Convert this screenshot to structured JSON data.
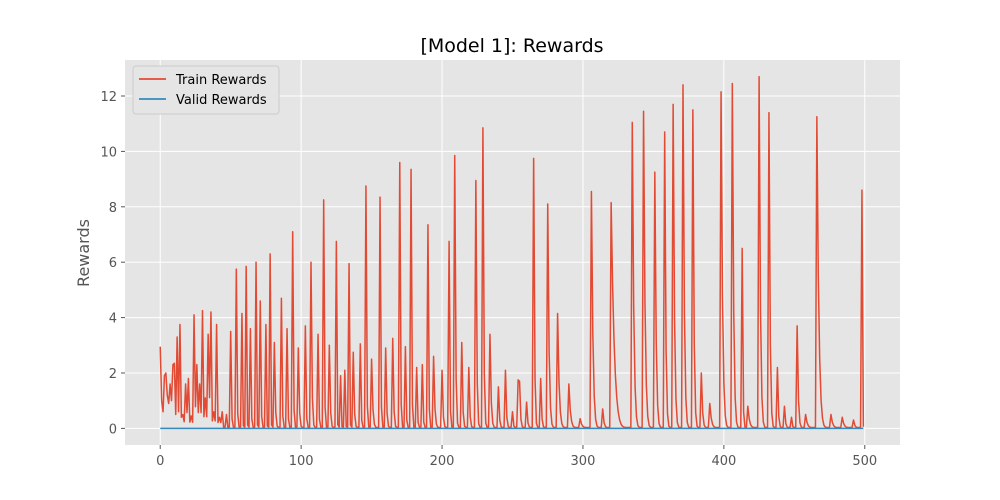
{
  "chart_data": {
    "type": "line",
    "title": "[Model 1]: Rewards",
    "xlabel": "",
    "ylabel": "Rewards",
    "xlim": [
      -25,
      525
    ],
    "ylim": [
      -0.6,
      13.3
    ],
    "xticks": [
      0,
      100,
      200,
      300,
      400,
      500
    ],
    "yticks": [
      0,
      2,
      4,
      6,
      8,
      10,
      12
    ],
    "grid": true,
    "legend_position": "top-left",
    "background": "#e5e5e5",
    "series": [
      {
        "name": "Train Rewards",
        "color": "#e24a33",
        "baseline": 0.3,
        "x_start": 0,
        "x_end": 499,
        "start_points": [
          [
            0,
            2.95
          ],
          [
            1,
            1.0
          ],
          [
            2,
            0.6
          ],
          [
            3,
            1.9
          ],
          [
            4,
            2.0
          ],
          [
            5,
            1.2
          ],
          [
            6,
            0.9
          ],
          [
            7,
            1.6
          ],
          [
            8,
            1.0
          ],
          [
            9,
            2.3
          ],
          [
            10,
            2.35
          ],
          [
            11,
            0.5
          ],
          [
            12,
            3.3
          ],
          [
            13,
            0.6
          ],
          [
            14,
            3.75
          ],
          [
            15,
            0.4
          ],
          [
            16,
            0.5
          ]
        ],
        "peaks": [
          [
            18,
            1.6
          ],
          [
            20,
            1.8
          ],
          [
            22,
            0.45
          ],
          [
            24,
            4.1
          ],
          [
            26,
            2.3
          ],
          [
            28,
            1.6
          ],
          [
            30,
            4.25
          ],
          [
            32,
            1.1
          ],
          [
            34,
            3.4
          ],
          [
            36,
            4.2
          ],
          [
            38,
            0.6
          ],
          [
            40,
            3.75
          ],
          [
            42,
            0.4
          ],
          [
            44,
            0.6
          ],
          [
            47,
            0.5
          ],
          [
            50,
            3.5
          ],
          [
            54,
            5.75
          ],
          [
            58,
            4.15
          ],
          [
            61,
            5.85
          ],
          [
            64,
            3.6
          ],
          [
            68,
            6.0
          ],
          [
            71,
            4.6
          ],
          [
            75,
            3.75
          ],
          [
            78,
            6.3
          ],
          [
            81,
            3.1
          ],
          [
            86,
            4.7
          ],
          [
            90,
            3.6
          ],
          [
            94,
            7.1
          ],
          [
            98,
            2.9
          ],
          [
            103,
            3.7
          ],
          [
            107,
            6.0
          ],
          [
            112,
            3.4
          ],
          [
            116,
            8.25
          ],
          [
            120,
            3.0
          ],
          [
            125,
            6.75
          ],
          [
            128,
            1.9
          ],
          [
            131,
            2.1
          ],
          [
            134,
            5.95
          ],
          [
            137,
            2.75
          ],
          [
            142,
            3.05
          ],
          [
            146,
            8.75
          ],
          [
            150,
            2.5
          ],
          [
            156,
            8.35
          ],
          [
            160,
            2.9
          ],
          [
            165,
            3.25
          ],
          [
            170,
            9.6
          ],
          [
            174,
            2.95
          ],
          [
            178,
            9.35
          ],
          [
            182,
            2.2
          ],
          [
            186,
            2.3
          ],
          [
            190,
            7.35
          ],
          [
            194,
            2.6
          ],
          [
            200,
            2.1
          ],
          [
            205,
            6.75
          ],
          [
            209,
            9.85
          ],
          [
            214,
            3.1
          ],
          [
            219,
            2.2
          ],
          [
            224,
            8.95
          ],
          [
            229,
            10.85
          ],
          [
            234,
            3.4
          ],
          [
            240,
            1.5
          ],
          [
            245,
            2.1
          ],
          [
            250,
            0.6
          ],
          [
            254,
            1.75
          ],
          [
            255,
            1.7
          ],
          [
            260,
            0.95
          ],
          [
            265,
            9.75
          ],
          [
            270,
            1.8
          ],
          [
            275,
            8.1
          ],
          [
            282,
            4.15
          ],
          [
            290,
            1.6
          ],
          [
            298,
            0.35
          ],
          [
            306,
            8.55
          ],
          [
            314,
            0.7
          ],
          [
            320,
            8.15
          ],
          [
            335,
            11.05
          ],
          [
            343,
            11.45
          ],
          [
            351,
            9.25
          ],
          [
            358,
            10.7
          ],
          [
            364,
            11.7
          ],
          [
            371,
            12.4
          ],
          [
            378,
            11.5
          ],
          [
            384,
            2.0
          ],
          [
            390,
            0.9
          ],
          [
            398,
            12.15
          ],
          [
            406,
            12.45
          ],
          [
            413,
            6.5
          ],
          [
            417,
            0.8
          ],
          [
            425,
            12.7
          ],
          [
            432,
            11.4
          ],
          [
            438,
            2.2
          ],
          [
            443,
            0.8
          ],
          [
            448,
            0.4
          ],
          [
            452,
            3.7
          ],
          [
            458,
            0.5
          ],
          [
            466,
            11.25
          ],
          [
            476,
            0.5
          ],
          [
            484,
            0.4
          ],
          [
            492,
            0.3
          ],
          [
            498,
            8.6
          ]
        ]
      },
      {
        "name": "Valid Rewards",
        "color": "#348abd",
        "x": [
          0,
          499
        ],
        "y": [
          0,
          0
        ]
      }
    ]
  }
}
